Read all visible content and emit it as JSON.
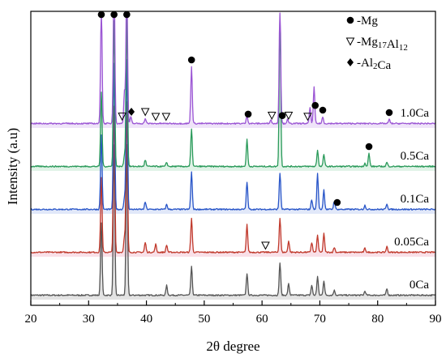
{
  "chart_data": {
    "type": "line",
    "xlabel": "2θ  degree",
    "ylabel": "Intensity (a.u)",
    "xlim": [
      20,
      90
    ],
    "x_ticks": [
      20,
      30,
      40,
      50,
      60,
      70,
      80,
      90
    ],
    "grid": false,
    "legend": {
      "placement": "top-right",
      "entries": [
        {
          "symbol": "●",
          "label": "-Mg"
        },
        {
          "symbol": "▽",
          "label": "-Mg17Al12"
        },
        {
          "symbol": "◆",
          "label": "-Al2Ca"
        }
      ]
    },
    "series": [
      {
        "name": "0Ca",
        "color": "#555555",
        "shade": "#cccccc",
        "offset": 0,
        "peaks": [
          [
            32.2,
            90
          ],
          [
            34.4,
            185
          ],
          [
            36.6,
            185
          ],
          [
            43.5,
            12
          ],
          [
            47.8,
            35
          ],
          [
            57.4,
            27
          ],
          [
            63.1,
            40
          ],
          [
            64.6,
            14
          ],
          [
            68.6,
            12
          ],
          [
            69.6,
            23
          ],
          [
            70.7,
            18
          ],
          [
            72.5,
            6
          ],
          [
            77.8,
            5
          ],
          [
            81.6,
            8
          ]
        ]
      },
      {
        "name": "0.05Ca",
        "color": "#c0392b",
        "shade": "#f4c6d6",
        "offset": 1,
        "peaks": [
          [
            32.2,
            92
          ],
          [
            34.4,
            180
          ],
          [
            36.2,
            20
          ],
          [
            36.6,
            185
          ],
          [
            39.8,
            12
          ],
          [
            41.6,
            10
          ],
          [
            43.5,
            9
          ],
          [
            47.8,
            42
          ],
          [
            57.4,
            34
          ],
          [
            63.1,
            42
          ],
          [
            64.6,
            14
          ],
          [
            68.6,
            12
          ],
          [
            69.6,
            21
          ],
          [
            70.7,
            23
          ],
          [
            72.5,
            6
          ],
          [
            77.8,
            5
          ],
          [
            81.6,
            7
          ]
        ]
      },
      {
        "name": "0.1Ca",
        "color": "#2855c8",
        "shade": "#c9d6f4",
        "offset": 2,
        "peaks": [
          [
            32.2,
            92
          ],
          [
            34.4,
            180
          ],
          [
            36.2,
            15
          ],
          [
            36.6,
            185
          ],
          [
            39.8,
            9
          ],
          [
            43.5,
            6
          ],
          [
            47.8,
            46
          ],
          [
            57.4,
            34
          ],
          [
            63.1,
            45
          ],
          [
            68.6,
            12
          ],
          [
            69.6,
            44
          ],
          [
            70.7,
            24
          ],
          [
            72.5,
            10
          ],
          [
            77.8,
            5
          ],
          [
            81.6,
            7
          ]
        ]
      },
      {
        "name": "0.5Ca",
        "color": "#2a9a5a",
        "shade": "#c6ead4",
        "offset": 3,
        "peaks": [
          [
            32.2,
            92
          ],
          [
            34.4,
            180
          ],
          [
            36.2,
            14
          ],
          [
            36.6,
            185
          ],
          [
            39.8,
            8
          ],
          [
            43.5,
            5
          ],
          [
            47.8,
            46
          ],
          [
            57.4,
            33
          ],
          [
            63.1,
            185
          ],
          [
            69.6,
            20
          ],
          [
            70.7,
            15
          ],
          [
            77.8,
            4
          ],
          [
            78.5,
            16
          ],
          [
            81.6,
            5
          ]
        ]
      },
      {
        "name": "1.0Ca",
        "color": "#9b55d4",
        "shade": "#e2cdf4",
        "offset": 4,
        "peaks": [
          [
            32.2,
            150
          ],
          [
            34.4,
            185
          ],
          [
            36.2,
            40
          ],
          [
            36.6,
            185
          ],
          [
            37.3,
            8
          ],
          [
            39.8,
            6
          ],
          [
            47.8,
            70
          ],
          [
            57.4,
            10
          ],
          [
            61.5,
            5
          ],
          [
            63.1,
            150
          ],
          [
            64.4,
            5
          ],
          [
            68.3,
            20
          ],
          [
            69.0,
            45
          ],
          [
            70.5,
            8
          ],
          [
            82.0,
            5
          ]
        ]
      }
    ],
    "annotations": [
      {
        "symbol": "●",
        "x": 32.2,
        "series": "top"
      },
      {
        "symbol": "●",
        "x": 34.4,
        "series": "top"
      },
      {
        "symbol": "●",
        "x": 36.6,
        "series": "top"
      },
      {
        "symbol": "▽",
        "x": 35.8,
        "series": "1.0Ca"
      },
      {
        "symbol": "◆",
        "x": 37.4,
        "series": "1.0Ca"
      },
      {
        "symbol": "▽",
        "x": 39.8,
        "series": "1.0Ca"
      },
      {
        "symbol": "▽",
        "x": 41.6,
        "series": "1.0Ca"
      },
      {
        "symbol": "▽",
        "x": 43.4,
        "series": "1.0Ca"
      },
      {
        "symbol": "●",
        "x": 47.8,
        "series": "1.0Ca"
      },
      {
        "symbol": "●",
        "x": 57.6,
        "series": "1.0Ca"
      },
      {
        "symbol": "▽",
        "x": 61.7,
        "series": "1.0Ca"
      },
      {
        "symbol": "●",
        "x": 63.5,
        "series": "1.0Ca"
      },
      {
        "symbol": "▽",
        "x": 64.6,
        "series": "1.0Ca"
      },
      {
        "symbol": "▽",
        "x": 67.9,
        "series": "1.0Ca"
      },
      {
        "symbol": "●",
        "x": 69.2,
        "series": "1.0Ca"
      },
      {
        "symbol": "●",
        "x": 70.5,
        "series": "1.0Ca"
      },
      {
        "symbol": "●",
        "x": 82.0,
        "series": "1.0Ca"
      },
      {
        "symbol": "●",
        "x": 78.5,
        "series": "0.5Ca"
      },
      {
        "symbol": "●",
        "x": 73.0,
        "series": "0.1Ca"
      },
      {
        "symbol": "▽",
        "x": 60.6,
        "series": "0.05Ca"
      }
    ]
  }
}
